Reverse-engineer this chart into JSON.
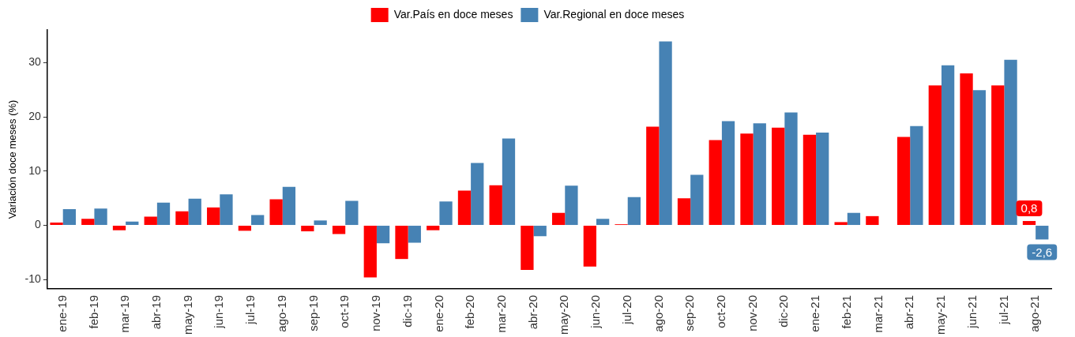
{
  "chart_data": {
    "type": "bar",
    "ylabel": "Variación doce meses (%)",
    "legend": "top",
    "categories": [
      "ene-19",
      "feb-19",
      "mar-19",
      "abr-19",
      "may-19",
      "jun-19",
      "jul-19",
      "ago-19",
      "sep-19",
      "oct-19",
      "nov-19",
      "dic-19",
      "ene-20",
      "feb-20",
      "mar-20",
      "abr-20",
      "may-20",
      "jun-20",
      "jul-20",
      "ago-20",
      "sep-20",
      "oct-20",
      "nov-20",
      "dic-20",
      "ene-21",
      "feb-21",
      "mar-21",
      "abr-21",
      "may-21",
      "jun-21",
      "jul-21",
      "ago-21"
    ],
    "series": [
      {
        "name": "Var.País en doce meses",
        "color": "#ff0000",
        "values": [
          0.5,
          1.2,
          -0.9,
          1.6,
          2.6,
          3.3,
          -1.0,
          4.8,
          -1.1,
          -1.6,
          -9.6,
          -6.2,
          -0.9,
          6.4,
          7.4,
          -8.2,
          2.3,
          -7.6,
          0.2,
          18.2,
          5.0,
          15.7,
          16.9,
          18.0,
          16.7,
          0.6,
          1.7,
          16.3,
          25.8,
          28.0,
          25.8,
          0.8
        ],
        "value_labels": [
          null,
          null,
          null,
          null,
          null,
          null,
          null,
          null,
          null,
          null,
          null,
          null,
          null,
          null,
          null,
          null,
          null,
          null,
          null,
          null,
          null,
          null,
          null,
          null,
          null,
          null,
          null,
          null,
          null,
          null,
          null,
          "0,8"
        ]
      },
      {
        "name": "Var.Regional en doce meses",
        "color": "#4682b4",
        "values": [
          3.0,
          3.1,
          0.7,
          4.2,
          4.9,
          5.7,
          1.9,
          7.1,
          0.9,
          4.5,
          -3.3,
          -3.2,
          4.4,
          11.5,
          16.0,
          -2.0,
          7.3,
          1.2,
          5.2,
          33.9,
          9.3,
          19.2,
          18.8,
          20.8,
          17.1,
          2.3,
          0.0,
          18.3,
          29.5,
          24.9,
          30.5,
          -2.6
        ],
        "value_labels": [
          null,
          null,
          null,
          null,
          null,
          null,
          null,
          null,
          null,
          null,
          null,
          null,
          null,
          null,
          null,
          null,
          null,
          null,
          null,
          null,
          null,
          null,
          null,
          null,
          null,
          null,
          null,
          null,
          null,
          null,
          null,
          "-2,6"
        ]
      }
    ],
    "ylim": [
      -11.7,
      36
    ],
    "yticks": [
      -10,
      0,
      10,
      20,
      30
    ],
    "grid": false
  }
}
